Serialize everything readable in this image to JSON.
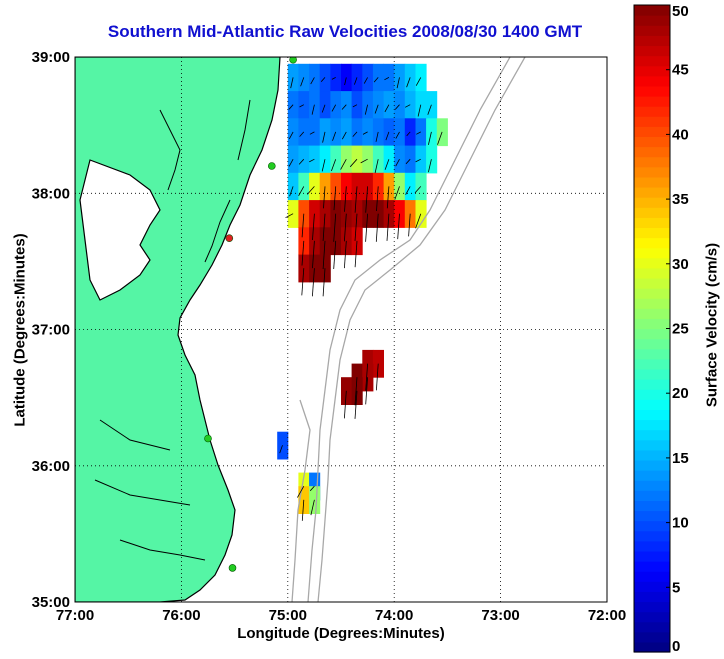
{
  "title": "Southern Mid-Atlantic Raw Velocities 2008/08/30 1400 GMT",
  "xlabel": "Longitude (Degrees:Minutes)",
  "ylabel": "Latitude (Degrees:Minutes)",
  "colorbar_label": "Surface Velocity (cm/s)",
  "colors": {
    "land": "#55f5a5",
    "coast": "#000000",
    "bathymetry": "#a8a8a8",
    "station": "#22cc22",
    "station_red": "#dd2222",
    "grid": "#000000"
  },
  "chart_data": {
    "type": "heatmap",
    "title": "Southern Mid-Atlantic Raw Velocities 2008/08/30 1400 GMT",
    "xlabel": "Longitude (Degrees:Minutes)",
    "ylabel": "Latitude (Degrees:Minutes)",
    "xlim": [
      -77,
      -72
    ],
    "ylim": [
      35,
      39
    ],
    "x_ticks": [
      "77:00",
      "76:00",
      "75:00",
      "74:00",
      "73:00",
      "72:00"
    ],
    "y_ticks": [
      "39:00",
      "38:00",
      "37:00",
      "36:00",
      "35:00"
    ],
    "colorbar": {
      "label": "Surface Velocity (cm/s)",
      "range": [
        0,
        50
      ],
      "ticks": [
        0,
        5,
        10,
        15,
        20,
        25,
        30,
        35,
        40,
        45,
        50
      ],
      "colormap": "jet"
    },
    "velocity_field": [
      {
        "lon": -74.95,
        "lat": 38.85,
        "speed": 14
      },
      {
        "lon": -74.85,
        "lat": 38.85,
        "speed": 13
      },
      {
        "lon": -74.75,
        "lat": 38.85,
        "speed": 12
      },
      {
        "lon": -74.65,
        "lat": 38.85,
        "speed": 10
      },
      {
        "lon": -74.55,
        "lat": 38.85,
        "speed": 8
      },
      {
        "lon": -74.45,
        "lat": 38.85,
        "speed": 6
      },
      {
        "lon": -74.35,
        "lat": 38.85,
        "speed": 8
      },
      {
        "lon": -74.25,
        "lat": 38.85,
        "speed": 10
      },
      {
        "lon": -74.15,
        "lat": 38.85,
        "speed": 12
      },
      {
        "lon": -74.05,
        "lat": 38.85,
        "speed": 12
      },
      {
        "lon": -73.95,
        "lat": 38.85,
        "speed": 14
      },
      {
        "lon": -73.85,
        "lat": 38.85,
        "speed": 16
      },
      {
        "lon": -73.75,
        "lat": 38.85,
        "speed": 18
      },
      {
        "lon": -74.95,
        "lat": 38.65,
        "speed": 12
      },
      {
        "lon": -74.85,
        "lat": 38.65,
        "speed": 11
      },
      {
        "lon": -74.75,
        "lat": 38.65,
        "speed": 12
      },
      {
        "lon": -74.65,
        "lat": 38.65,
        "speed": 10
      },
      {
        "lon": -74.55,
        "lat": 38.65,
        "speed": 12
      },
      {
        "lon": -74.45,
        "lat": 38.65,
        "speed": 13
      },
      {
        "lon": -74.35,
        "lat": 38.65,
        "speed": 10
      },
      {
        "lon": -74.25,
        "lat": 38.65,
        "speed": 12
      },
      {
        "lon": -74.15,
        "lat": 38.65,
        "speed": 13
      },
      {
        "lon": -74.05,
        "lat": 38.65,
        "speed": 14
      },
      {
        "lon": -73.95,
        "lat": 38.65,
        "speed": 13
      },
      {
        "lon": -73.85,
        "lat": 38.65,
        "speed": 15
      },
      {
        "lon": -73.75,
        "lat": 38.65,
        "speed": 17
      },
      {
        "lon": -73.65,
        "lat": 38.65,
        "speed": 17
      },
      {
        "lon": -74.95,
        "lat": 38.45,
        "speed": 13
      },
      {
        "lon": -74.85,
        "lat": 38.45,
        "speed": 12
      },
      {
        "lon": -74.75,
        "lat": 38.45,
        "speed": 12
      },
      {
        "lon": -74.65,
        "lat": 38.45,
        "speed": 14
      },
      {
        "lon": -74.55,
        "lat": 38.45,
        "speed": 13
      },
      {
        "lon": -74.45,
        "lat": 38.45,
        "speed": 14
      },
      {
        "lon": -74.35,
        "lat": 38.45,
        "speed": 12
      },
      {
        "lon": -74.25,
        "lat": 38.45,
        "speed": 13
      },
      {
        "lon": -74.15,
        "lat": 38.45,
        "speed": 12
      },
      {
        "lon": -74.05,
        "lat": 38.45,
        "speed": 11
      },
      {
        "lon": -73.95,
        "lat": 38.45,
        "speed": 12
      },
      {
        "lon": -73.85,
        "lat": 38.45,
        "speed": 8
      },
      {
        "lon": -73.75,
        "lat": 38.45,
        "speed": 12
      },
      {
        "lon": -73.65,
        "lat": 38.45,
        "speed": 20
      },
      {
        "lon": -73.55,
        "lat": 38.45,
        "speed": 25
      },
      {
        "lon": -74.95,
        "lat": 38.25,
        "speed": 14
      },
      {
        "lon": -74.85,
        "lat": 38.25,
        "speed": 15
      },
      {
        "lon": -74.75,
        "lat": 38.25,
        "speed": 16
      },
      {
        "lon": -74.65,
        "lat": 38.25,
        "speed": 18
      },
      {
        "lon": -74.55,
        "lat": 38.25,
        "speed": 22
      },
      {
        "lon": -74.45,
        "lat": 38.25,
        "speed": 26
      },
      {
        "lon": -74.35,
        "lat": 38.25,
        "speed": 28
      },
      {
        "lon": -74.25,
        "lat": 38.25,
        "speed": 26
      },
      {
        "lon": -74.15,
        "lat": 38.25,
        "speed": 22
      },
      {
        "lon": -74.05,
        "lat": 38.25,
        "speed": 18
      },
      {
        "lon": -73.95,
        "lat": 38.25,
        "speed": 13
      },
      {
        "lon": -73.85,
        "lat": 38.25,
        "speed": 12
      },
      {
        "lon": -73.75,
        "lat": 38.25,
        "speed": 16
      },
      {
        "lon": -73.65,
        "lat": 38.25,
        "speed": 20
      },
      {
        "lon": -74.95,
        "lat": 38.05,
        "speed": 16
      },
      {
        "lon": -74.85,
        "lat": 38.05,
        "speed": 22
      },
      {
        "lon": -74.75,
        "lat": 38.05,
        "speed": 30
      },
      {
        "lon": -74.65,
        "lat": 38.05,
        "speed": 36
      },
      {
        "lon": -74.55,
        "lat": 38.05,
        "speed": 40
      },
      {
        "lon": -74.45,
        "lat": 38.05,
        "speed": 44
      },
      {
        "lon": -74.35,
        "lat": 38.05,
        "speed": 46
      },
      {
        "lon": -74.25,
        "lat": 38.05,
        "speed": 46
      },
      {
        "lon": -74.15,
        "lat": 38.05,
        "speed": 42
      },
      {
        "lon": -74.05,
        "lat": 38.05,
        "speed": 36
      },
      {
        "lon": -73.95,
        "lat": 38.05,
        "speed": 26
      },
      {
        "lon": -73.85,
        "lat": 38.05,
        "speed": 18
      },
      {
        "lon": -73.75,
        "lat": 38.05,
        "speed": 22
      },
      {
        "lon": -74.95,
        "lat": 37.85,
        "speed": 30
      },
      {
        "lon": -74.85,
        "lat": 37.85,
        "speed": 40
      },
      {
        "lon": -74.75,
        "lat": 37.85,
        "speed": 46
      },
      {
        "lon": -74.65,
        "lat": 37.85,
        "speed": 48
      },
      {
        "lon": -74.55,
        "lat": 37.85,
        "speed": 50
      },
      {
        "lon": -74.45,
        "lat": 37.85,
        "speed": 49
      },
      {
        "lon": -74.35,
        "lat": 37.85,
        "speed": 48
      },
      {
        "lon": -74.25,
        "lat": 37.85,
        "speed": 50
      },
      {
        "lon": -74.15,
        "lat": 37.85,
        "speed": 50
      },
      {
        "lon": -74.05,
        "lat": 37.85,
        "speed": 48
      },
      {
        "lon": -73.95,
        "lat": 37.85,
        "speed": 44
      },
      {
        "lon": -73.85,
        "lat": 37.85,
        "speed": 38
      },
      {
        "lon": -73.75,
        "lat": 37.85,
        "speed": 30
      },
      {
        "lon": -74.85,
        "lat": 37.65,
        "speed": 42
      },
      {
        "lon": -74.75,
        "lat": 37.65,
        "speed": 48
      },
      {
        "lon": -74.65,
        "lat": 37.65,
        "speed": 50
      },
      {
        "lon": -74.55,
        "lat": 37.65,
        "speed": 50
      },
      {
        "lon": -74.45,
        "lat": 37.65,
        "speed": 48
      },
      {
        "lon": -74.35,
        "lat": 37.65,
        "speed": 46
      },
      {
        "lon": -74.85,
        "lat": 37.45,
        "speed": 48
      },
      {
        "lon": -74.75,
        "lat": 37.45,
        "speed": 50
      },
      {
        "lon": -74.65,
        "lat": 37.45,
        "speed": 50
      },
      {
        "lon": -74.25,
        "lat": 36.75,
        "speed": 48
      },
      {
        "lon": -74.15,
        "lat": 36.75,
        "speed": 47
      },
      {
        "lon": -74.35,
        "lat": 36.65,
        "speed": 50
      },
      {
        "lon": -74.25,
        "lat": 36.65,
        "speed": 48
      },
      {
        "lon": -74.45,
        "lat": 36.55,
        "speed": 49
      },
      {
        "lon": -74.35,
        "lat": 36.55,
        "speed": 50
      },
      {
        "lon": -74.85,
        "lat": 35.85,
        "speed": 30
      },
      {
        "lon": -74.75,
        "lat": 35.85,
        "speed": 12
      },
      {
        "lon": -74.85,
        "lat": 35.75,
        "speed": 34
      },
      {
        "lon": -74.75,
        "lat": 35.75,
        "speed": 26
      },
      {
        "lon": -75.05,
        "lat": 36.15,
        "speed": 10
      }
    ],
    "stations": [
      {
        "lon": -74.95,
        "lat": 38.98,
        "color": "green"
      },
      {
        "lon": -75.15,
        "lat": 38.2,
        "color": "green"
      },
      {
        "lon": -75.55,
        "lat": 37.67,
        "color": "red"
      },
      {
        "lon": -75.75,
        "lat": 36.2,
        "color": "green"
      },
      {
        "lon": -75.52,
        "lat": 35.25,
        "color": "green"
      }
    ]
  }
}
